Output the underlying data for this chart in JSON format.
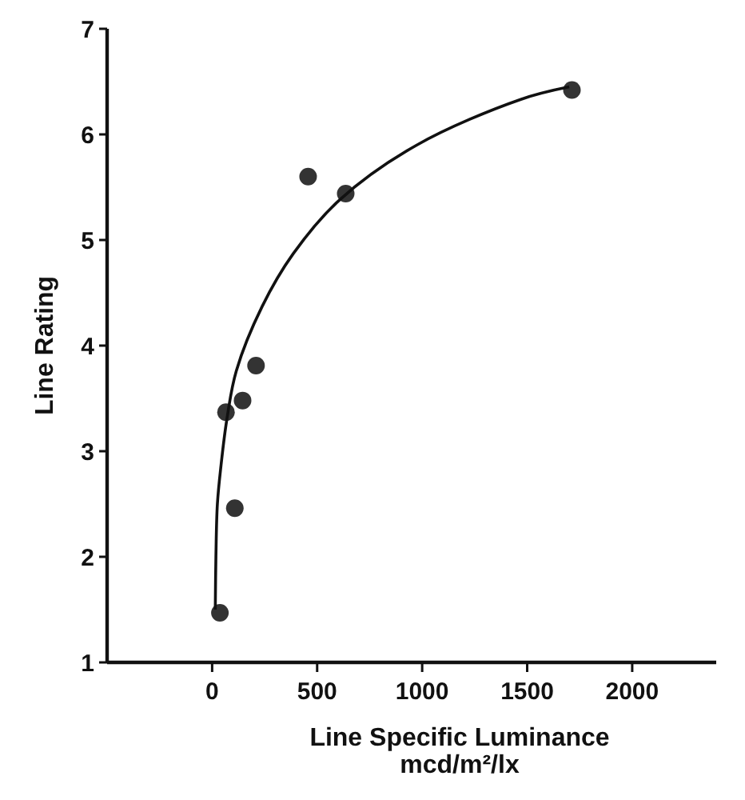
{
  "chart_data": {
    "type": "scatter",
    "xlabel": "Line Specific Luminance\nmcd/m²/lx",
    "ylabel": "Line Rating",
    "xlim": [
      -500,
      2400
    ],
    "xticks": [
      0,
      500,
      1000,
      1500,
      2000
    ],
    "ylim": [
      1,
      7
    ],
    "yticks": [
      1,
      2,
      3,
      4,
      5,
      6,
      7
    ],
    "grid": false,
    "marker": "circle",
    "series": [
      {
        "color": "#333333",
        "x": [
          37,
          66,
          108,
          145,
          209,
          457,
          636,
          1713
        ],
        "values": [
          1.47,
          3.37,
          2.46,
          3.48,
          3.81,
          5.6,
          5.44,
          6.42
        ]
      },
      {
        "type": "line",
        "color": "#111111",
        "line_style": "solid",
        "marker": "none",
        "x": [
          15,
          18,
          25,
          42,
          70,
          115,
          238,
          386,
          607,
          975,
          1467,
          1700
        ],
        "values": [
          1.5,
          2,
          2.5,
          2.86,
          3.3,
          3.76,
          4.37,
          4.87,
          5.38,
          5.9,
          6.33,
          6.45
        ]
      }
    ]
  }
}
